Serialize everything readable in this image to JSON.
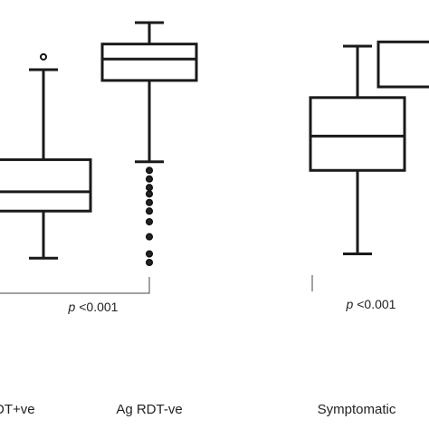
{
  "chart_data": {
    "type": "box",
    "categories": [
      "Ag RDT+ve",
      "Ag RDT-ve",
      "Symptomatic",
      ""
    ],
    "axis_labels": [
      "DT+ve",
      "Ag RDT-ve",
      "Symptomatic"
    ],
    "boxes": [
      {
        "label": "Ag RDT+ve",
        "whisker_low": 12,
        "q1": 34,
        "median": 43,
        "q3": 58,
        "whisker_high": 100,
        "outliers": [
          106
        ]
      },
      {
        "label": "Ag RDT-ve",
        "whisker_low": 57,
        "q1": 95,
        "median": 105,
        "q3": 112,
        "whisker_high": 122,
        "outliers": [
          53,
          49,
          45,
          42,
          38,
          34,
          29,
          22,
          14,
          10
        ]
      },
      {
        "label": "Symptomatic",
        "whisker_low": 14,
        "q1": 53,
        "median": 69,
        "q3": 87,
        "whisker_high": 111,
        "outliers": []
      },
      {
        "label": "",
        "whisker_low": null,
        "q1": 92,
        "median": null,
        "q3": 113,
        "whisker_high": null,
        "outliers": []
      }
    ],
    "comparisons": [
      {
        "between": [
          "Ag RDT+ve",
          "Ag RDT-ve"
        ],
        "text_italic": "p",
        "text": " <0.001"
      },
      {
        "between": [
          "Symptomatic",
          ""
        ],
        "text_italic": "p",
        "text": " <0.001"
      }
    ],
    "ylim": [
      0,
      130
    ],
    "grid": false,
    "legend": "none",
    "colors": {
      "stroke": "#1a1a1a",
      "text": "#222222"
    }
  }
}
